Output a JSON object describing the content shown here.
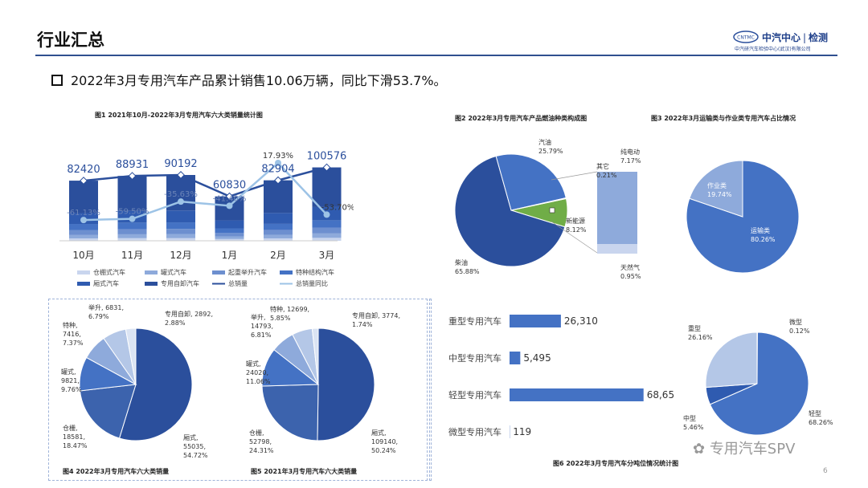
{
  "header": {
    "title": "行业汇总",
    "logo_main": "中汽中心",
    "logo_sep": "|",
    "logo_side": "检测",
    "logo_sub": "中汽研汽车检验中心(武汉)有限公司",
    "logo_badge": "CNTMC"
  },
  "summary": "2022年3月专用汽车产品累计销售10.06万辆，同比下滑53.7%。",
  "colors": {
    "dark": "#2b4f9c",
    "mid": "#4472c4",
    "light": "#8eaadb",
    "pale": "#c9d5ee",
    "green": "#70ad47",
    "line": "#9dc3e6"
  },
  "chart_data": [
    {
      "id": "fig1",
      "type": "bar",
      "title": "图1  2021年10月-2022年3月专用汽车六大类销量统计图",
      "categories": [
        "10月",
        "11月",
        "12月",
        "1月",
        "2月",
        "3月"
      ],
      "series": [
        {
          "name": "总销量",
          "values": [
            82420,
            88931,
            90192,
            60830,
            82904,
            100576
          ]
        },
        {
          "name": "总销量同比",
          "values": [
            "-61.13%",
            "-59.50%",
            "-35.63%",
            "-41.40%",
            "17.93%",
            "-53.70%"
          ]
        }
      ],
      "legend": [
        "仓棚式汽车",
        "罐式汽车",
        "起重举升汽车",
        "特种结构汽车",
        "厢式汽车",
        "专用自卸汽车",
        "总销量",
        "总销量同比"
      ],
      "legend_position": "bottom"
    },
    {
      "id": "fig2",
      "type": "pie",
      "title": "图2  2022年3月专用汽车产品燃油种类构成图",
      "slices": [
        {
          "label": "柴油",
          "value": "65.88%"
        },
        {
          "label": "汽油",
          "value": "25.79%"
        },
        {
          "label": "其它",
          "value": "0.21%"
        },
        {
          "label": "新能源",
          "value": "8.12%"
        }
      ],
      "breakdown": [
        {
          "label": "纯电动",
          "value": "7.17%"
        },
        {
          "label": "天然气",
          "value": "0.95%"
        }
      ]
    },
    {
      "id": "fig3",
      "type": "pie",
      "title": "图3  2022年3月运输类与作业类专用汽车占比情况",
      "slices": [
        {
          "label": "运输类",
          "value": "80.26%"
        },
        {
          "label": "作业类",
          "value": "19.74%"
        }
      ]
    },
    {
      "id": "fig4",
      "type": "pie",
      "title": "图4  2022年3月专用汽车六大类销量",
      "slices": [
        {
          "label": "厢式,",
          "count": "55035,",
          "value": "54.72%"
        },
        {
          "label": "仓栅,",
          "count": "18581,",
          "value": "18.47%"
        },
        {
          "label": "罐式,",
          "count": "9821,",
          "value": "9.76%"
        },
        {
          "label": "特种,",
          "count": "7416,",
          "value": "7.37%"
        },
        {
          "label": "举升,",
          "count": "6831,",
          "value": "6.79%"
        },
        {
          "label": "专用自卸,",
          "count": "2892,",
          "value": "2.88%"
        }
      ]
    },
    {
      "id": "fig5",
      "type": "pie",
      "title": "图5  2021年3月专用汽车六大类销量",
      "slices": [
        {
          "label": "厢式,",
          "count": "109140,",
          "value": "50.24%"
        },
        {
          "label": "仓栅,",
          "count": "52798,",
          "value": "24.31%"
        },
        {
          "label": "罐式,",
          "count": "24020,",
          "value": "11.06%"
        },
        {
          "label": "举升,",
          "count": "14793,",
          "value": "6.81%"
        },
        {
          "label": "特种,",
          "count": "12699,",
          "value": "5.85%"
        },
        {
          "label": "专用自卸,",
          "count": "3774,",
          "value": "1.74%"
        }
      ]
    },
    {
      "id": "fig6",
      "type": "bar",
      "title": "图6  2022年3月专用汽车分吨位情况统计图",
      "categories": [
        "重型专用汽车",
        "中型专用汽车",
        "轻型专用汽车",
        "微型专用汽车"
      ],
      "values": [
        26310,
        5495,
        68652,
        119
      ],
      "value_labels": [
        "26,310",
        "5,495",
        "68,652",
        "119"
      ],
      "pie": [
        {
          "label": "轻型",
          "value": "68.26%"
        },
        {
          "label": "中型",
          "value": "5.46%"
        },
        {
          "label": "重型",
          "value": "26.16%"
        },
        {
          "label": "微型",
          "value": "0.12%"
        }
      ]
    }
  ],
  "watermark": "专用汽车SPV",
  "page_number": "6"
}
